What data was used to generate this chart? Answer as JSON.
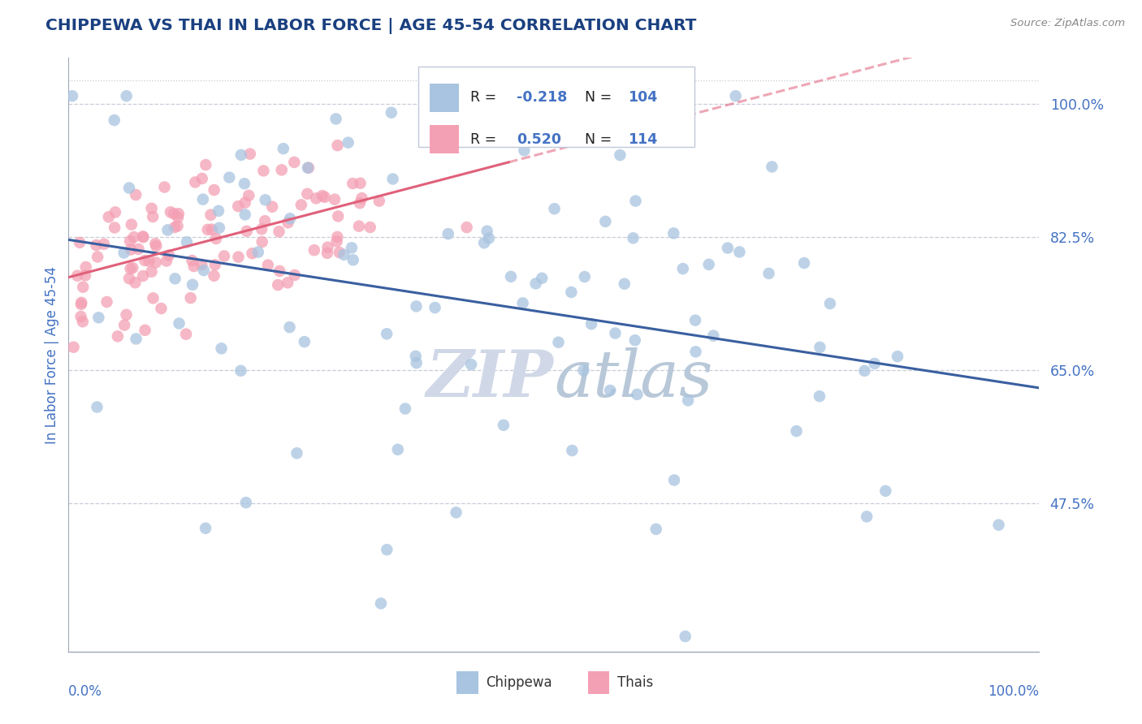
{
  "title": "CHIPPEWA VS THAI IN LABOR FORCE | AGE 45-54 CORRELATION CHART",
  "source": "Source: ZipAtlas.com",
  "ylabel": "In Labor Force | Age 45-54",
  "xlim": [
    0.0,
    1.0
  ],
  "ylim": [
    0.28,
    1.06
  ],
  "chippewa_R": -0.218,
  "chippewa_N": 104,
  "thai_R": 0.52,
  "thai_N": 114,
  "chippewa_color": "#a8c4e0",
  "thai_color": "#f4a0b4",
  "chippewa_line_color": "#3a5fa0",
  "thai_line_color": "#e0607a",
  "title_color": "#1a4080",
  "tick_label_color": "#4472c4",
  "watermark_color": "#d0d8e8",
  "grid_color": "#c8cdd8",
  "background_color": "#ffffff",
  "ytick_vals": [
    0.475,
    0.65,
    0.825,
    1.0
  ],
  "ytick_labels": [
    "47.5%",
    "65.0%",
    "82.5%",
    "100.0%"
  ]
}
